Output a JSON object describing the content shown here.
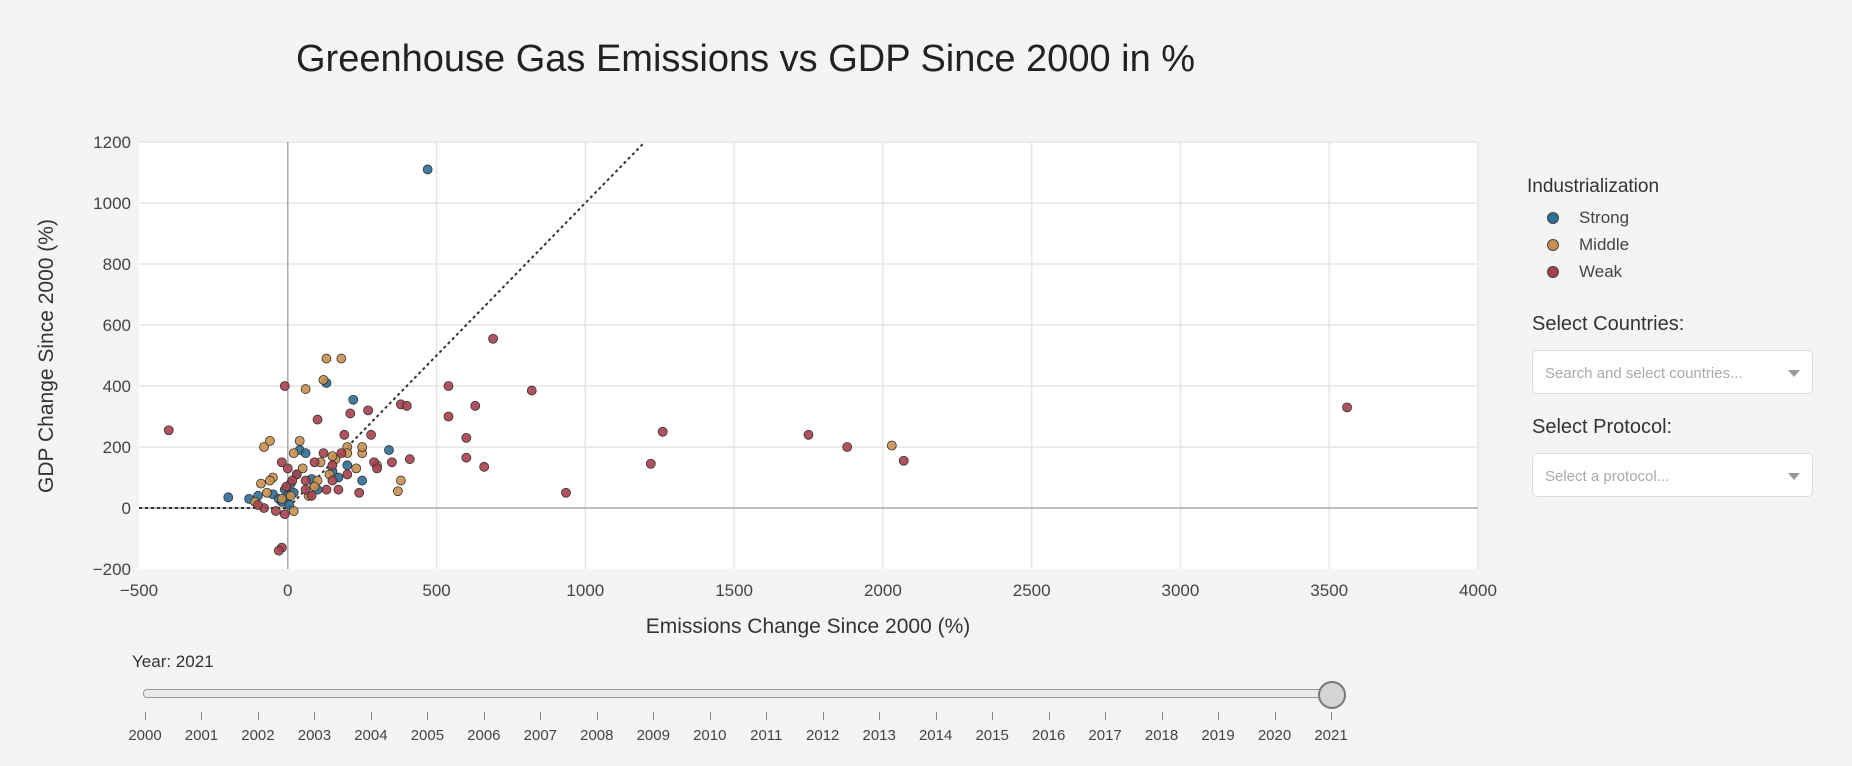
{
  "chart_data": {
    "type": "scatter",
    "title": "Greenhouse Gas Emissions vs GDP Since 2000 in %",
    "xlabel": "Emissions Change Since 2000 (%)",
    "ylabel": "GDP Change Since 2000 (%)",
    "xlim": [
      -500,
      4000
    ],
    "ylim": [
      -200,
      1200
    ],
    "xticks": [
      "−500",
      "0",
      "500",
      "1000",
      "1500",
      "2000",
      "2500",
      "3000",
      "3500",
      "4000"
    ],
    "yticks": [
      "−200",
      "0",
      "200",
      "400",
      "600",
      "800",
      "1000",
      "1200"
    ],
    "grid": true,
    "legend_position": "right",
    "reference_line": {
      "style": "dotted",
      "points": [
        [
          -500,
          0
        ],
        [
          0,
          0
        ],
        [
          1200,
          1200
        ]
      ]
    },
    "series": [
      {
        "name": "Strong",
        "color": "#2c6e96",
        "points": [
          [
            470,
            1110
          ],
          [
            -200,
            35
          ],
          [
            -130,
            30
          ],
          [
            -100,
            40
          ],
          [
            -50,
            45
          ],
          [
            -30,
            30
          ],
          [
            -10,
            60
          ],
          [
            0,
            40
          ],
          [
            10,
            80
          ],
          [
            20,
            50
          ],
          [
            40,
            190
          ],
          [
            60,
            180
          ],
          [
            80,
            95
          ],
          [
            100,
            60
          ],
          [
            130,
            410
          ],
          [
            150,
            120
          ],
          [
            170,
            100
          ],
          [
            200,
            140
          ],
          [
            220,
            355
          ],
          [
            250,
            90
          ],
          [
            340,
            190
          ],
          [
            -20,
            20
          ],
          [
            5,
            10
          ],
          [
            30,
            110
          ]
        ]
      },
      {
        "name": "Middle",
        "color": "#c8904e",
        "points": [
          [
            2030,
            205
          ],
          [
            130,
            490
          ],
          [
            180,
            490
          ],
          [
            120,
            420
          ],
          [
            60,
            390
          ],
          [
            380,
            90
          ],
          [
            370,
            55
          ],
          [
            300,
            140
          ],
          [
            250,
            180
          ],
          [
            230,
            130
          ],
          [
            200,
            200
          ],
          [
            160,
            160
          ],
          [
            140,
            110
          ],
          [
            100,
            90
          ],
          [
            90,
            70
          ],
          [
            70,
            40
          ],
          [
            50,
            130
          ],
          [
            40,
            220
          ],
          [
            20,
            180
          ],
          [
            10,
            40
          ],
          [
            -20,
            30
          ],
          [
            -50,
            100
          ],
          [
            -60,
            90
          ],
          [
            -70,
            50
          ],
          [
            -80,
            200
          ],
          [
            -60,
            220
          ],
          [
            -90,
            80
          ],
          [
            -110,
            20
          ],
          [
            20,
            -10
          ],
          [
            250,
            200
          ],
          [
            200,
            180
          ],
          [
            150,
            170
          ],
          [
            110,
            150
          ]
        ]
      },
      {
        "name": "Weak",
        "color": "#a8404e",
        "points": [
          [
            3560,
            330
          ],
          [
            -400,
            255
          ],
          [
            -10,
            400
          ],
          [
            -20,
            -130
          ],
          [
            -30,
            -140
          ],
          [
            -10,
            -20
          ],
          [
            -40,
            -10
          ],
          [
            -80,
            0
          ],
          [
            -100,
            10
          ],
          [
            -20,
            150
          ],
          [
            0,
            130
          ],
          [
            30,
            110
          ],
          [
            60,
            90
          ],
          [
            90,
            150
          ],
          [
            120,
            180
          ],
          [
            150,
            140
          ],
          [
            170,
            60
          ],
          [
            180,
            180
          ],
          [
            190,
            240
          ],
          [
            210,
            310
          ],
          [
            240,
            50
          ],
          [
            270,
            320
          ],
          [
            280,
            240
          ],
          [
            290,
            150
          ],
          [
            300,
            130
          ],
          [
            350,
            150
          ],
          [
            380,
            340
          ],
          [
            400,
            335
          ],
          [
            410,
            160
          ],
          [
            540,
            400
          ],
          [
            540,
            300
          ],
          [
            600,
            230
          ],
          [
            600,
            165
          ],
          [
            630,
            335
          ],
          [
            660,
            135
          ],
          [
            690,
            555
          ],
          [
            820,
            385
          ],
          [
            935,
            50
          ],
          [
            1220,
            145
          ],
          [
            1260,
            250
          ],
          [
            1750,
            240
          ],
          [
            1880,
            200
          ],
          [
            2070,
            155
          ],
          [
            100,
            290
          ],
          [
            60,
            60
          ],
          [
            200,
            110
          ],
          [
            150,
            90
          ],
          [
            130,
            60
          ],
          [
            80,
            40
          ],
          [
            -5,
            70
          ],
          [
            15,
            90
          ]
        ]
      }
    ]
  },
  "legend": {
    "title": "Industrialization",
    "items": [
      {
        "label": "Strong",
        "color": "#2c6e96"
      },
      {
        "label": "Middle",
        "color": "#c8904e"
      },
      {
        "label": "Weak",
        "color": "#a8404e"
      }
    ]
  },
  "controls": {
    "countries_label": "Select Countries:",
    "countries_placeholder": "Search and select countries...",
    "protocol_label": "Select Protocol:",
    "protocol_placeholder": "Select a protocol..."
  },
  "slider": {
    "label": "Year: 2021",
    "min": 2000,
    "max": 2021,
    "value": 2021,
    "years": [
      "2000",
      "2001",
      "2002",
      "2003",
      "2004",
      "2005",
      "2006",
      "2007",
      "2008",
      "2009",
      "2010",
      "2011",
      "2012",
      "2013",
      "2014",
      "2015",
      "2016",
      "2017",
      "2018",
      "2019",
      "2020",
      "2021"
    ]
  }
}
